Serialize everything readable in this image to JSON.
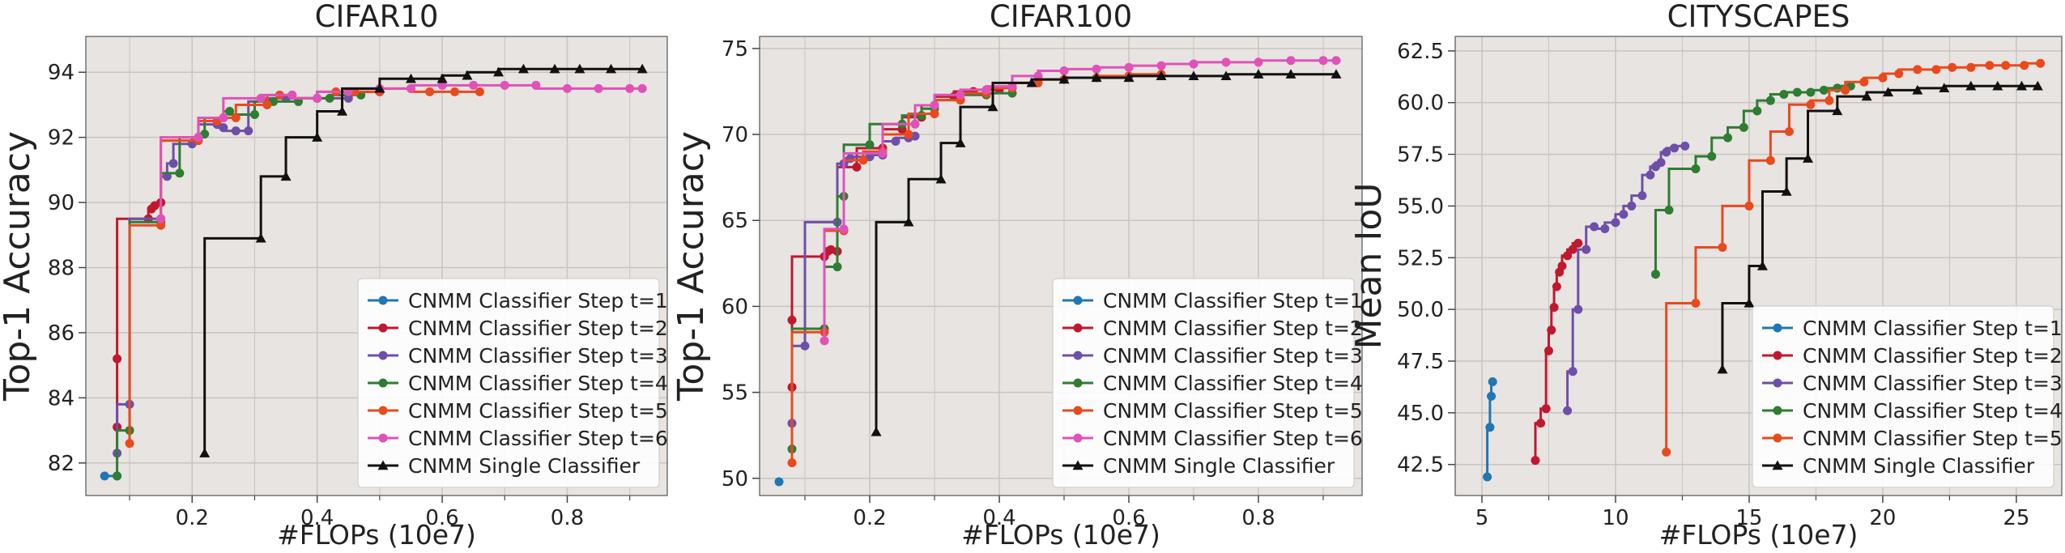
{
  "colors": {
    "plot_bg": "#E8E4E1",
    "grid": "#C9C4C0",
    "t1": "#1F77B4",
    "t2": "#C0182E",
    "t3": "#6E4FA8",
    "t4": "#2E7D32",
    "t5": "#E84A1E",
    "t6": "#E052B8",
    "single": "#111111"
  },
  "legend_labels": {
    "t1": "CNMM Classifier Step t=1",
    "t2": "CNMM Classifier Step t=2",
    "t3": "CNMM Classifier Step t=3",
    "t4": "CNMM Classifier Step t=4",
    "t5": "CNMM Classifier Step t=5",
    "t6": "CNMM Classifier Step t=6",
    "single": "CNMM Single Classifier"
  },
  "chart_data": [
    {
      "type": "line",
      "title": "CIFAR10",
      "xlabel": "#FLOPs (10e7)",
      "ylabel": "Top-1 Accuracy",
      "xlim": [
        0.03,
        0.96
      ],
      "ylim": [
        81.0,
        95.1
      ],
      "xticks": [
        0.2,
        0.4,
        0.6,
        0.8
      ],
      "xtick_labels": [
        "0.2",
        "0.4",
        "0.6",
        "0.8"
      ],
      "yticks": [
        82,
        84,
        86,
        88,
        90,
        92,
        94
      ],
      "ytick_labels": [
        "82",
        "84",
        "86",
        "88",
        "90",
        "92",
        "94"
      ],
      "legend_position": "lower-right",
      "grid": true,
      "series": [
        {
          "name": "CNMM Classifier Step t=1",
          "key": "t1",
          "marker": "circle",
          "x": [
            0.06,
            0.08
          ],
          "y": [
            81.6,
            81.6
          ]
        },
        {
          "name": "CNMM Classifier Step t=2",
          "key": "t2",
          "marker": "circle",
          "x": [
            0.08,
            0.08,
            0.13,
            0.135,
            0.14,
            0.15
          ],
          "y": [
            83.1,
            85.2,
            89.5,
            89.8,
            89.9,
            90.0
          ]
        },
        {
          "name": "CNMM Classifier Step t=3",
          "key": "t3",
          "marker": "circle",
          "x": [
            0.08,
            0.1,
            0.15,
            0.16,
            0.17,
            0.2,
            0.21,
            0.24,
            0.25,
            0.27,
            0.29,
            0.32,
            0.35,
            0.4,
            0.45,
            0.5
          ],
          "y": [
            82.3,
            83.8,
            89.5,
            90.8,
            91.2,
            91.8,
            92.0,
            92.4,
            92.3,
            92.2,
            92.2,
            93.1,
            93.2,
            93.2,
            93.2,
            93.4
          ]
        },
        {
          "name": "CNMM Classifier Step t=4",
          "key": "t4",
          "marker": "circle",
          "x": [
            0.08,
            0.1,
            0.15,
            0.18,
            0.21,
            0.22,
            0.25,
            0.26,
            0.3,
            0.33,
            0.37,
            0.42,
            0.47
          ],
          "y": [
            81.6,
            83.0,
            89.4,
            90.9,
            92.0,
            92.1,
            92.6,
            92.8,
            92.7,
            93.1,
            93.1,
            93.2,
            93.3
          ]
        },
        {
          "name": "CNMM Classifier Step t=5",
          "key": "t5",
          "marker": "circle",
          "x": [
            0.1,
            0.15,
            0.21,
            0.24,
            0.27,
            0.32,
            0.34,
            0.36,
            0.4,
            0.43,
            0.46,
            0.5,
            0.55,
            0.58,
            0.62,
            0.66
          ],
          "y": [
            82.6,
            89.3,
            91.9,
            92.5,
            92.6,
            93.0,
            93.3,
            93.3,
            93.2,
            93.4,
            93.4,
            93.4,
            93.5,
            93.4,
            93.4,
            93.4
          ]
        },
        {
          "name": "CNMM Classifier Step t=6",
          "key": "t6",
          "marker": "circle",
          "x": [
            0.15,
            0.21,
            0.25,
            0.31,
            0.36,
            0.4,
            0.45,
            0.5,
            0.55,
            0.6,
            0.65,
            0.7,
            0.75,
            0.8,
            0.85,
            0.9,
            0.92
          ],
          "y": [
            89.5,
            92.0,
            92.6,
            93.2,
            93.3,
            93.2,
            93.4,
            93.5,
            93.5,
            93.6,
            93.6,
            93.6,
            93.6,
            93.5,
            93.5,
            93.5,
            93.5
          ]
        },
        {
          "name": "CNMM Single Classifier",
          "key": "single",
          "marker": "triangle",
          "x": [
            0.22,
            0.31,
            0.35,
            0.4,
            0.44,
            0.5,
            0.55,
            0.6,
            0.64,
            0.69,
            0.73,
            0.78,
            0.82,
            0.87,
            0.92
          ],
          "y": [
            82.3,
            88.9,
            90.8,
            92.0,
            92.8,
            93.5,
            93.8,
            93.8,
            93.9,
            94.0,
            94.1,
            94.1,
            94.1,
            94.1,
            94.1
          ]
        }
      ]
    },
    {
      "type": "line",
      "title": "CIFAR100",
      "xlabel": "#FLOPs (10e7)",
      "ylabel": "Top-1 Accuracy",
      "xlim": [
        0.03,
        0.96
      ],
      "ylim": [
        49.0,
        75.7
      ],
      "xticks": [
        0.2,
        0.4,
        0.6,
        0.8
      ],
      "xtick_labels": [
        "0.2",
        "0.4",
        "0.6",
        "0.8"
      ],
      "yticks": [
        50,
        55,
        60,
        65,
        70,
        75
      ],
      "ytick_labels": [
        "50",
        "55",
        "60",
        "65",
        "70",
        "75"
      ],
      "legend_position": "lower-right",
      "grid": true,
      "series": [
        {
          "name": "CNMM Classifier Step t=1",
          "key": "t1",
          "marker": "circle",
          "x": [
            0.06
          ],
          "y": [
            49.8
          ]
        },
        {
          "name": "CNMM Classifier Step t=2",
          "key": "t2",
          "marker": "circle",
          "x": [
            0.08,
            0.08,
            0.13,
            0.135,
            0.14,
            0.15,
            0.18,
            0.22,
            0.25,
            0.28,
            0.3,
            0.33,
            0.36,
            0.4
          ],
          "y": [
            55.3,
            59.2,
            62.9,
            63.2,
            63.3,
            63.2,
            68.1,
            69.2,
            70.3,
            71.0,
            71.7,
            72.2,
            72.5,
            72.6
          ]
        },
        {
          "name": "CNMM Classifier Step t=3",
          "key": "t3",
          "marker": "circle",
          "x": [
            0.08,
            0.1,
            0.15,
            0.16,
            0.17,
            0.2,
            0.22,
            0.24,
            0.26,
            0.27
          ],
          "y": [
            53.2,
            57.7,
            64.9,
            68.3,
            68.6,
            68.7,
            68.8,
            69.6,
            69.8,
            69.9
          ]
        },
        {
          "name": "CNMM Classifier Step t=4",
          "key": "t4",
          "marker": "circle",
          "x": [
            0.08,
            0.13,
            0.15,
            0.16,
            0.2,
            0.25,
            0.28,
            0.3,
            0.34,
            0.38,
            0.42
          ],
          "y": [
            51.7,
            58.7,
            62.3,
            66.4,
            69.4,
            70.6,
            71.1,
            71.5,
            72.0,
            72.3,
            72.4
          ]
        },
        {
          "name": "CNMM Classifier Step t=5",
          "key": "t5",
          "marker": "circle",
          "x": [
            0.08,
            0.13,
            0.16,
            0.19,
            0.22,
            0.26,
            0.3,
            0.34,
            0.38,
            0.42,
            0.46,
            0.5,
            0.55,
            0.6,
            0.65
          ],
          "y": [
            50.9,
            58.5,
            64.4,
            68.5,
            69.0,
            70.0,
            71.2,
            72.0,
            72.4,
            72.7,
            73.0,
            73.2,
            73.3,
            73.4,
            73.5
          ]
        },
        {
          "name": "CNMM Classifier Step t=6",
          "key": "t6",
          "marker": "circle",
          "x": [
            0.13,
            0.16,
            0.22,
            0.27,
            0.3,
            0.34,
            0.38,
            0.42,
            0.46,
            0.5,
            0.55,
            0.6,
            0.65,
            0.7,
            0.75,
            0.8,
            0.85,
            0.9,
            0.92
          ],
          "y": [
            58.0,
            64.5,
            68.9,
            70.6,
            71.7,
            72.3,
            72.6,
            72.8,
            73.4,
            73.7,
            73.8,
            73.9,
            74.0,
            74.1,
            74.2,
            74.2,
            74.3,
            74.3,
            74.3
          ]
        },
        {
          "name": "CNMM Single Classifier",
          "key": "single",
          "marker": "triangle",
          "x": [
            0.21,
            0.26,
            0.31,
            0.34,
            0.39,
            0.45,
            0.5,
            0.55,
            0.6,
            0.65,
            0.7,
            0.75,
            0.8,
            0.85,
            0.92
          ],
          "y": [
            52.7,
            64.9,
            67.4,
            69.5,
            71.6,
            73.0,
            73.2,
            73.3,
            73.3,
            73.4,
            73.4,
            73.4,
            73.5,
            73.5,
            73.5
          ]
        }
      ]
    },
    {
      "type": "line",
      "title": "CITYSCAPES",
      "xlabel": "#FLOPs (10e7)",
      "ylabel": "Mean IoU",
      "xlim": [
        4.0,
        26.7
      ],
      "ylim": [
        41.0,
        63.2
      ],
      "xticks": [
        5,
        10,
        15,
        20,
        25
      ],
      "xtick_labels": [
        "5",
        "10",
        "15",
        "20",
        "25"
      ],
      "yticks": [
        42.5,
        45.0,
        47.5,
        50.0,
        52.5,
        55.0,
        57.5,
        60.0,
        62.5
      ],
      "ytick_labels": [
        "42.5",
        "45.0",
        "47.5",
        "50.0",
        "52.5",
        "55.0",
        "57.5",
        "60.0",
        "62.5"
      ],
      "legend_position": "lower-right",
      "grid": true,
      "series": [
        {
          "name": "CNMM Classifier Step t=1",
          "key": "t1",
          "marker": "circle",
          "x": [
            5.2,
            5.3,
            5.35,
            5.4
          ],
          "y": [
            41.9,
            44.3,
            45.8,
            46.5
          ]
        },
        {
          "name": "CNMM Classifier Step t=2",
          "key": "t2",
          "marker": "circle",
          "x": [
            7.0,
            7.2,
            7.4,
            7.5,
            7.6,
            7.7,
            7.8,
            7.9,
            8.0,
            8.2,
            8.4,
            8.6
          ],
          "y": [
            42.7,
            44.5,
            45.2,
            48.0,
            49.0,
            50.1,
            51.1,
            51.8,
            52.1,
            52.6,
            52.9,
            53.2
          ]
        },
        {
          "name": "CNMM Classifier Step t=3",
          "key": "t3",
          "marker": "circle",
          "x": [
            8.2,
            8.4,
            8.6,
            8.9,
            9.2,
            9.6,
            10.0,
            10.3,
            10.6,
            11.0,
            11.3,
            11.5,
            11.7,
            11.9,
            12.2,
            12.6
          ],
          "y": [
            45.1,
            47.0,
            50.0,
            52.9,
            54.0,
            53.9,
            54.2,
            54.6,
            55.0,
            55.5,
            56.5,
            56.9,
            57.1,
            57.6,
            57.8,
            57.9
          ]
        },
        {
          "name": "CNMM Classifier Step t=4",
          "key": "t4",
          "marker": "circle",
          "x": [
            11.5,
            12.0,
            13.0,
            13.6,
            14.2,
            14.8,
            15.3,
            15.8,
            16.3,
            16.8,
            17.3,
            17.8,
            18.3,
            18.8
          ],
          "y": [
            51.7,
            54.8,
            56.8,
            57.4,
            58.3,
            58.8,
            59.6,
            60.1,
            60.4,
            60.5,
            60.5,
            60.6,
            60.7,
            60.8
          ]
        },
        {
          "name": "CNMM Classifier Step t=5",
          "key": "t5",
          "marker": "circle",
          "x": [
            11.9,
            13.0,
            14.0,
            15.0,
            15.8,
            16.5,
            17.3,
            18.0,
            18.6,
            19.3,
            20.0,
            20.6,
            21.3,
            22.0,
            22.6,
            23.3,
            24.0,
            24.6,
            25.3,
            25.9
          ],
          "y": [
            43.1,
            50.3,
            53.0,
            55.0,
            57.2,
            58.6,
            59.9,
            60.1,
            60.6,
            61.0,
            61.2,
            61.4,
            61.6,
            61.6,
            61.7,
            61.7,
            61.8,
            61.8,
            61.8,
            61.9
          ]
        },
        {
          "name": "CNMM Single Classifier",
          "key": "single",
          "marker": "triangle",
          "x": [
            14.0,
            15.0,
            15.5,
            16.4,
            17.2,
            18.3,
            19.4,
            20.2,
            21.3,
            22.3,
            23.3,
            24.3,
            25.2,
            25.8
          ],
          "y": [
            47.1,
            50.3,
            52.1,
            55.7,
            57.3,
            59.6,
            60.3,
            60.5,
            60.6,
            60.7,
            60.8,
            60.8,
            60.8,
            60.8
          ]
        }
      ]
    }
  ]
}
